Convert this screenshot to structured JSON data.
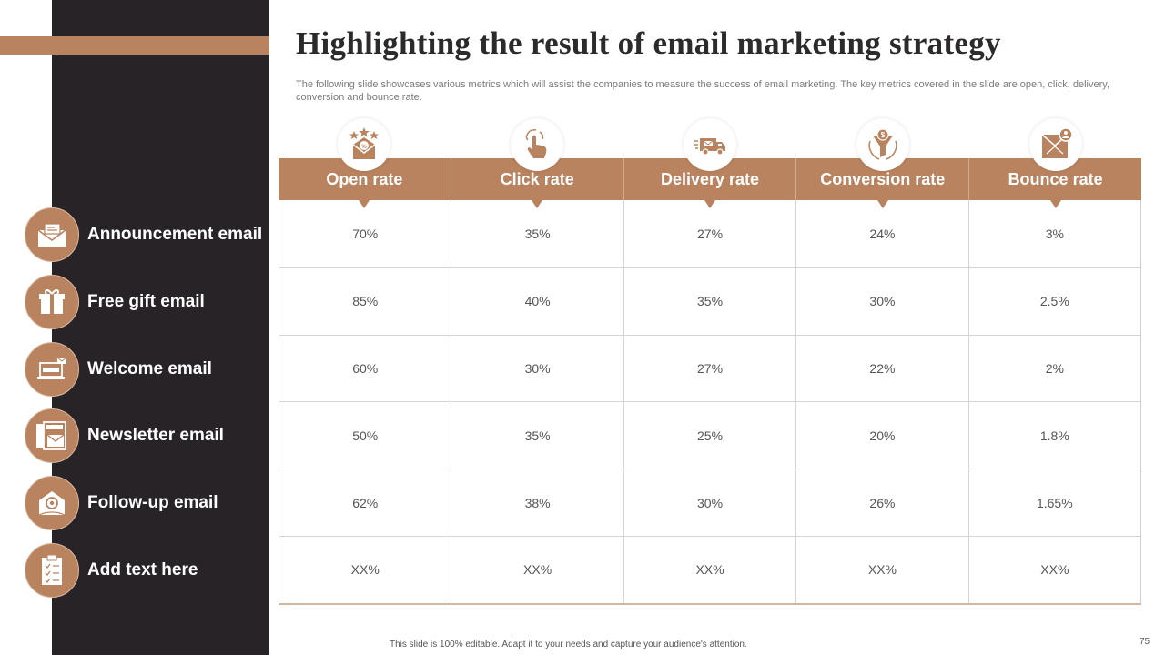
{
  "title": "Highlighting the result of email marketing strategy",
  "subtitle": "The following slide showcases various metrics which will assist the companies to measure the success of email marketing. The key metrics covered in the slide are open, click, delivery, conversion and bounce rate.",
  "rows": [
    {
      "label": "Announcement email",
      "icon": "envelope-icon"
    },
    {
      "label": "Free gift email",
      "icon": "gift-icon"
    },
    {
      "label": "Welcome email",
      "icon": "laptop-welcome-icon"
    },
    {
      "label": "Newsletter email",
      "icon": "newsletter-icon"
    },
    {
      "label": "Follow-up email",
      "icon": "at-mail-icon"
    },
    {
      "label": "Add text here",
      "icon": "checklist-icon"
    }
  ],
  "columns": [
    {
      "label": "Open rate",
      "icon": "star-envelope-icon"
    },
    {
      "label": "Click rate",
      "icon": "hand-click-icon"
    },
    {
      "label": "Delivery rate",
      "icon": "delivery-truck-icon"
    },
    {
      "label": "Conversion rate",
      "icon": "funnel-icon"
    },
    {
      "label": "Bounce rate",
      "icon": "bounce-icon"
    }
  ],
  "table": [
    [
      "70%",
      "35%",
      "27%",
      "24%",
      "3%"
    ],
    [
      "85%",
      "40%",
      "35%",
      "30%",
      "2.5%"
    ],
    [
      "60%",
      "30%",
      "27%",
      "22%",
      "2%"
    ],
    [
      "50%",
      "35%",
      "25%",
      "20%",
      "1.8%"
    ],
    [
      "62%",
      "38%",
      "30%",
      "26%",
      "1.65%"
    ],
    [
      "XX%",
      "XX%",
      "XX%",
      "XX%",
      "XX%"
    ]
  ],
  "footer": "This slide is 100% editable. Adapt it to your needs and capture your audience's attention.",
  "page_number": "75",
  "colors": {
    "accent": "#b9835f",
    "dark_panel": "#272327"
  }
}
